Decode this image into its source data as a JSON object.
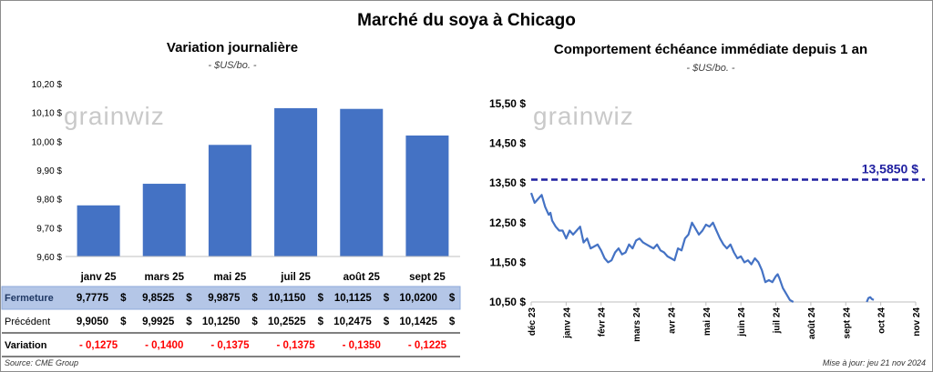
{
  "title": "Marché du soya à Chicago",
  "left": {
    "title": "Variation journalière",
    "subtitle": "- $US/bo. -",
    "watermark": "grainwiz"
  },
  "right": {
    "title": "Comportement échéance immédiate depuis 1 an",
    "subtitle": "- $US/bo. -",
    "watermark": "grainwiz",
    "reference_label": "13,5850 $"
  },
  "table": {
    "rows": [
      {
        "label": "Fermeture",
        "values": [
          "9,7775",
          "9,8525",
          "9,9875",
          "10,1150",
          "10,1125",
          "10,0200"
        ]
      },
      {
        "label": "Précédent",
        "values": [
          "9,9050",
          "9,9925",
          "10,1250",
          "10,2525",
          "10,2475",
          "10,1425"
        ]
      },
      {
        "label": "Variation",
        "values": [
          "- 0,1275",
          "- 0,1400",
          "- 0,1375",
          "- 0,1375",
          "- 0,1350",
          "- 0,1225"
        ]
      }
    ],
    "currency": "$"
  },
  "footer": {
    "source": "Source: CME Group",
    "updated": "Mise à jour: jeu 21 nov 2024"
  },
  "colors": {
    "bar": "#4472c4",
    "line": "#4472c4",
    "reference": "#1f1fa0",
    "negative": "#ff0000",
    "highlight_row": "#b4c6e7"
  },
  "chart_data": [
    {
      "type": "bar",
      "title": "Variation journalière",
      "subtitle": "- $US/bo. -",
      "categories": [
        "janv 25",
        "mars 25",
        "mai 25",
        "juil 25",
        "août 25",
        "sept 25"
      ],
      "values": [
        9.7775,
        9.8525,
        9.9875,
        10.115,
        10.1125,
        10.02
      ],
      "ylim": [
        9.6,
        10.2
      ],
      "yticks": [
        9.6,
        9.7,
        9.8,
        9.9,
        10.0,
        10.1,
        10.2
      ],
      "ytick_labels": [
        "9,60 $",
        "9,70 $",
        "9,80 $",
        "9,90 $",
        "10,00 $",
        "10,10 $",
        "10,20 $"
      ],
      "grid": false
    },
    {
      "type": "line",
      "title": "Comportement échéance immédiate depuis 1 an",
      "subtitle": "- $US/bo. -",
      "xticks": [
        "déc 23",
        "janv 24",
        "févr 24",
        "mars 24",
        "avr 24",
        "mai 24",
        "juin 24",
        "juil 24",
        "août 24",
        "sept 24",
        "oct 24",
        "nov 24"
      ],
      "ylim": [
        10.5,
        15.5
      ],
      "yticks": [
        10.5,
        11.5,
        12.5,
        13.5,
        14.5,
        15.5
      ],
      "ytick_labels": [
        "10,50 $",
        "11,50 $",
        "12,50 $",
        "13,50 $",
        "14,50 $",
        "15,50 $"
      ],
      "reference_line": 13.585,
      "x": [
        0.0,
        0.1,
        0.2,
        0.3,
        0.4,
        0.5,
        0.55,
        0.6,
        0.7,
        0.8,
        0.9,
        1.0,
        1.1,
        1.2,
        1.3,
        1.4,
        1.5,
        1.6,
        1.7,
        1.8,
        1.9,
        2.0,
        2.1,
        2.2,
        2.3,
        2.4,
        2.5,
        2.6,
        2.7,
        2.8,
        2.9,
        3.0,
        3.1,
        3.2,
        3.3,
        3.4,
        3.5,
        3.6,
        3.7,
        3.8,
        3.9,
        4.0,
        4.1,
        4.2,
        4.3,
        4.4,
        4.5,
        4.6,
        4.7,
        4.8,
        4.9,
        5.0,
        5.1,
        5.2,
        5.3,
        5.4,
        5.5,
        5.6,
        5.7,
        5.8,
        5.9,
        6.0,
        6.1,
        6.2,
        6.3,
        6.4,
        6.5,
        6.6,
        6.7,
        6.8,
        6.9,
        7.0,
        7.05,
        7.1,
        7.2,
        7.3,
        7.4,
        7.5
      ],
      "y": [
        13.25,
        13.0,
        13.1,
        13.2,
        12.9,
        12.7,
        12.75,
        12.55,
        12.4,
        12.3,
        12.3,
        12.1,
        12.3,
        12.2,
        12.3,
        12.4,
        12.0,
        12.1,
        11.85,
        11.9,
        11.95,
        11.8,
        11.6,
        11.5,
        11.55,
        11.75,
        11.85,
        11.7,
        11.75,
        11.95,
        11.85,
        12.05,
        12.1,
        12.0,
        11.95,
        11.9,
        11.85,
        11.95,
        11.8,
        11.75,
        11.65,
        11.6,
        11.55,
        11.85,
        11.8,
        12.1,
        12.2,
        12.5,
        12.35,
        12.2,
        12.3,
        12.45,
        12.4,
        12.5,
        12.3,
        12.1,
        11.95,
        11.85,
        11.95,
        11.75,
        11.6,
        11.65,
        11.5,
        11.55,
        11.45,
        11.6,
        11.5,
        11.3,
        11.0,
        11.05,
        11.0,
        11.15,
        11.2,
        11.1,
        10.85,
        10.7,
        10.55,
        10.5
      ],
      "x_late": [
        9.6,
        9.65,
        9.7,
        9.75,
        9.8
      ],
      "y_late": [
        10.5,
        10.6,
        10.62,
        10.57,
        10.55
      ],
      "grid": false
    }
  ]
}
